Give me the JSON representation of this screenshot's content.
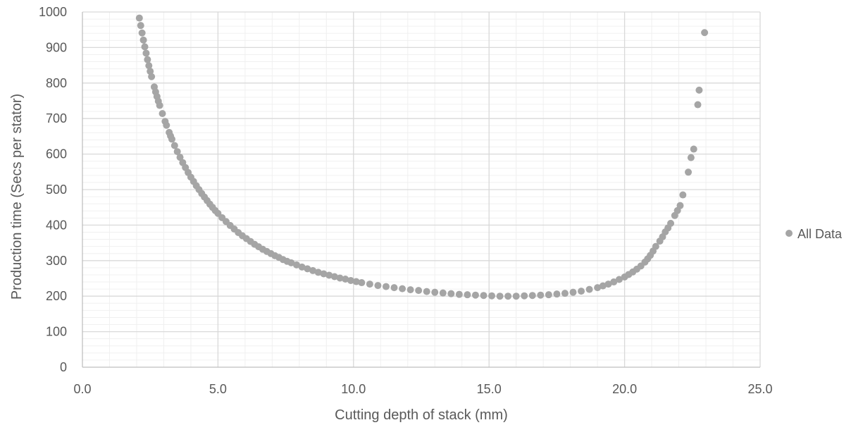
{
  "chart_data": {
    "type": "scatter",
    "xlabel": "Cutting depth of stack (mm)",
    "ylabel": "Production time (Secs per stator)",
    "xlim": [
      0,
      25
    ],
    "ylim": [
      0,
      1000
    ],
    "x_ticks": [
      0,
      5,
      10,
      15,
      20,
      25
    ],
    "x_tick_labels": [
      "0.0",
      "5.0",
      "10.0",
      "15.0",
      "20.0",
      "25.0"
    ],
    "y_ticks": [
      0,
      100,
      200,
      300,
      400,
      500,
      600,
      700,
      800,
      900,
      1000
    ],
    "y_tick_labels": [
      "0",
      "100",
      "200",
      "300",
      "400",
      "500",
      "600",
      "700",
      "800",
      "900",
      "1000"
    ],
    "grid": {
      "major": true,
      "minor": true
    },
    "legend_position": "right",
    "colors": {
      "marker": "#a5a5a5",
      "major_grid": "#d9d9d9",
      "minor_grid": "#f0f0f0",
      "axis": "#bfbfbf",
      "text": "#595959"
    },
    "series": [
      {
        "name": "All Data",
        "points": [
          [
            2.1,
            983
          ],
          [
            2.15,
            962
          ],
          [
            2.2,
            941
          ],
          [
            2.25,
            921
          ],
          [
            2.3,
            902
          ],
          [
            2.35,
            884
          ],
          [
            2.4,
            866
          ],
          [
            2.45,
            849
          ],
          [
            2.5,
            833
          ],
          [
            2.55,
            818
          ],
          [
            2.65,
            789
          ],
          [
            2.7,
            775
          ],
          [
            2.75,
            762
          ],
          [
            2.8,
            749
          ],
          [
            2.85,
            737
          ],
          [
            2.95,
            714
          ],
          [
            3.05,
            692
          ],
          [
            3.1,
            681
          ],
          [
            3.2,
            661
          ],
          [
            3.25,
            651
          ],
          [
            3.3,
            642
          ],
          [
            3.4,
            624
          ],
          [
            3.5,
            607
          ],
          [
            3.6,
            591
          ],
          [
            3.7,
            576
          ],
          [
            3.8,
            562
          ],
          [
            3.9,
            548
          ],
          [
            4.0,
            535
          ],
          [
            4.1,
            523
          ],
          [
            4.2,
            511
          ],
          [
            4.3,
            500
          ],
          [
            4.4,
            489
          ],
          [
            4.5,
            479
          ],
          [
            4.6,
            469
          ],
          [
            4.7,
            459
          ],
          [
            4.8,
            450
          ],
          [
            4.9,
            441
          ],
          [
            5.0,
            433
          ],
          [
            5.15,
            421
          ],
          [
            5.3,
            410
          ],
          [
            5.45,
            399
          ],
          [
            5.6,
            389
          ],
          [
            5.75,
            379
          ],
          [
            5.9,
            370
          ],
          [
            6.05,
            362
          ],
          [
            6.2,
            354
          ],
          [
            6.35,
            346
          ],
          [
            6.5,
            339
          ],
          [
            6.65,
            332
          ],
          [
            6.8,
            326
          ],
          [
            6.95,
            320
          ],
          [
            7.1,
            314
          ],
          [
            7.25,
            309
          ],
          [
            7.4,
            303
          ],
          [
            7.55,
            298
          ],
          [
            7.7,
            294
          ],
          [
            7.9,
            288
          ],
          [
            8.1,
            282
          ],
          [
            8.3,
            277
          ],
          [
            8.5,
            272
          ],
          [
            8.7,
            267
          ],
          [
            8.9,
            263
          ],
          [
            9.1,
            259
          ],
          [
            9.3,
            255
          ],
          [
            9.5,
            251
          ],
          [
            9.7,
            248
          ],
          [
            9.9,
            244
          ],
          [
            10.1,
            241
          ],
          [
            10.3,
            238
          ],
          [
            10.6,
            234
          ],
          [
            10.9,
            230
          ],
          [
            11.2,
            227
          ],
          [
            11.5,
            224
          ],
          [
            11.8,
            221
          ],
          [
            12.1,
            218
          ],
          [
            12.4,
            216
          ],
          [
            12.7,
            213
          ],
          [
            13.0,
            211
          ],
          [
            13.3,
            209
          ],
          [
            13.6,
            207
          ],
          [
            13.9,
            205
          ],
          [
            14.2,
            204
          ],
          [
            14.5,
            203
          ],
          [
            14.8,
            202
          ],
          [
            15.1,
            201
          ],
          [
            15.4,
            200
          ],
          [
            15.7,
            200
          ],
          [
            16.0,
            200
          ],
          [
            16.3,
            201
          ],
          [
            16.6,
            202
          ],
          [
            16.9,
            203
          ],
          [
            17.2,
            204
          ],
          [
            17.5,
            206
          ],
          [
            17.8,
            208
          ],
          [
            18.1,
            211
          ],
          [
            18.4,
            214
          ],
          [
            18.7,
            219
          ],
          [
            19.0,
            224
          ],
          [
            19.2,
            229
          ],
          [
            19.4,
            234
          ],
          [
            19.6,
            240
          ],
          [
            19.8,
            247
          ],
          [
            20.0,
            254
          ],
          [
            20.15,
            261
          ],
          [
            20.3,
            268
          ],
          [
            20.45,
            276
          ],
          [
            20.6,
            285
          ],
          [
            20.75,
            296
          ],
          [
            20.85,
            305
          ],
          [
            20.95,
            315
          ],
          [
            21.05,
            327
          ],
          [
            21.15,
            340
          ],
          [
            21.3,
            355
          ],
          [
            21.4,
            367
          ],
          [
            21.5,
            381
          ],
          [
            21.6,
            392
          ],
          [
            21.7,
            405
          ],
          [
            21.85,
            427
          ],
          [
            21.95,
            441
          ],
          [
            22.05,
            455
          ],
          [
            22.15,
            485
          ],
          [
            22.35,
            549
          ],
          [
            22.45,
            590
          ],
          [
            22.55,
            614
          ],
          [
            22.7,
            739
          ],
          [
            22.75,
            780
          ],
          [
            22.95,
            942
          ]
        ]
      }
    ]
  }
}
